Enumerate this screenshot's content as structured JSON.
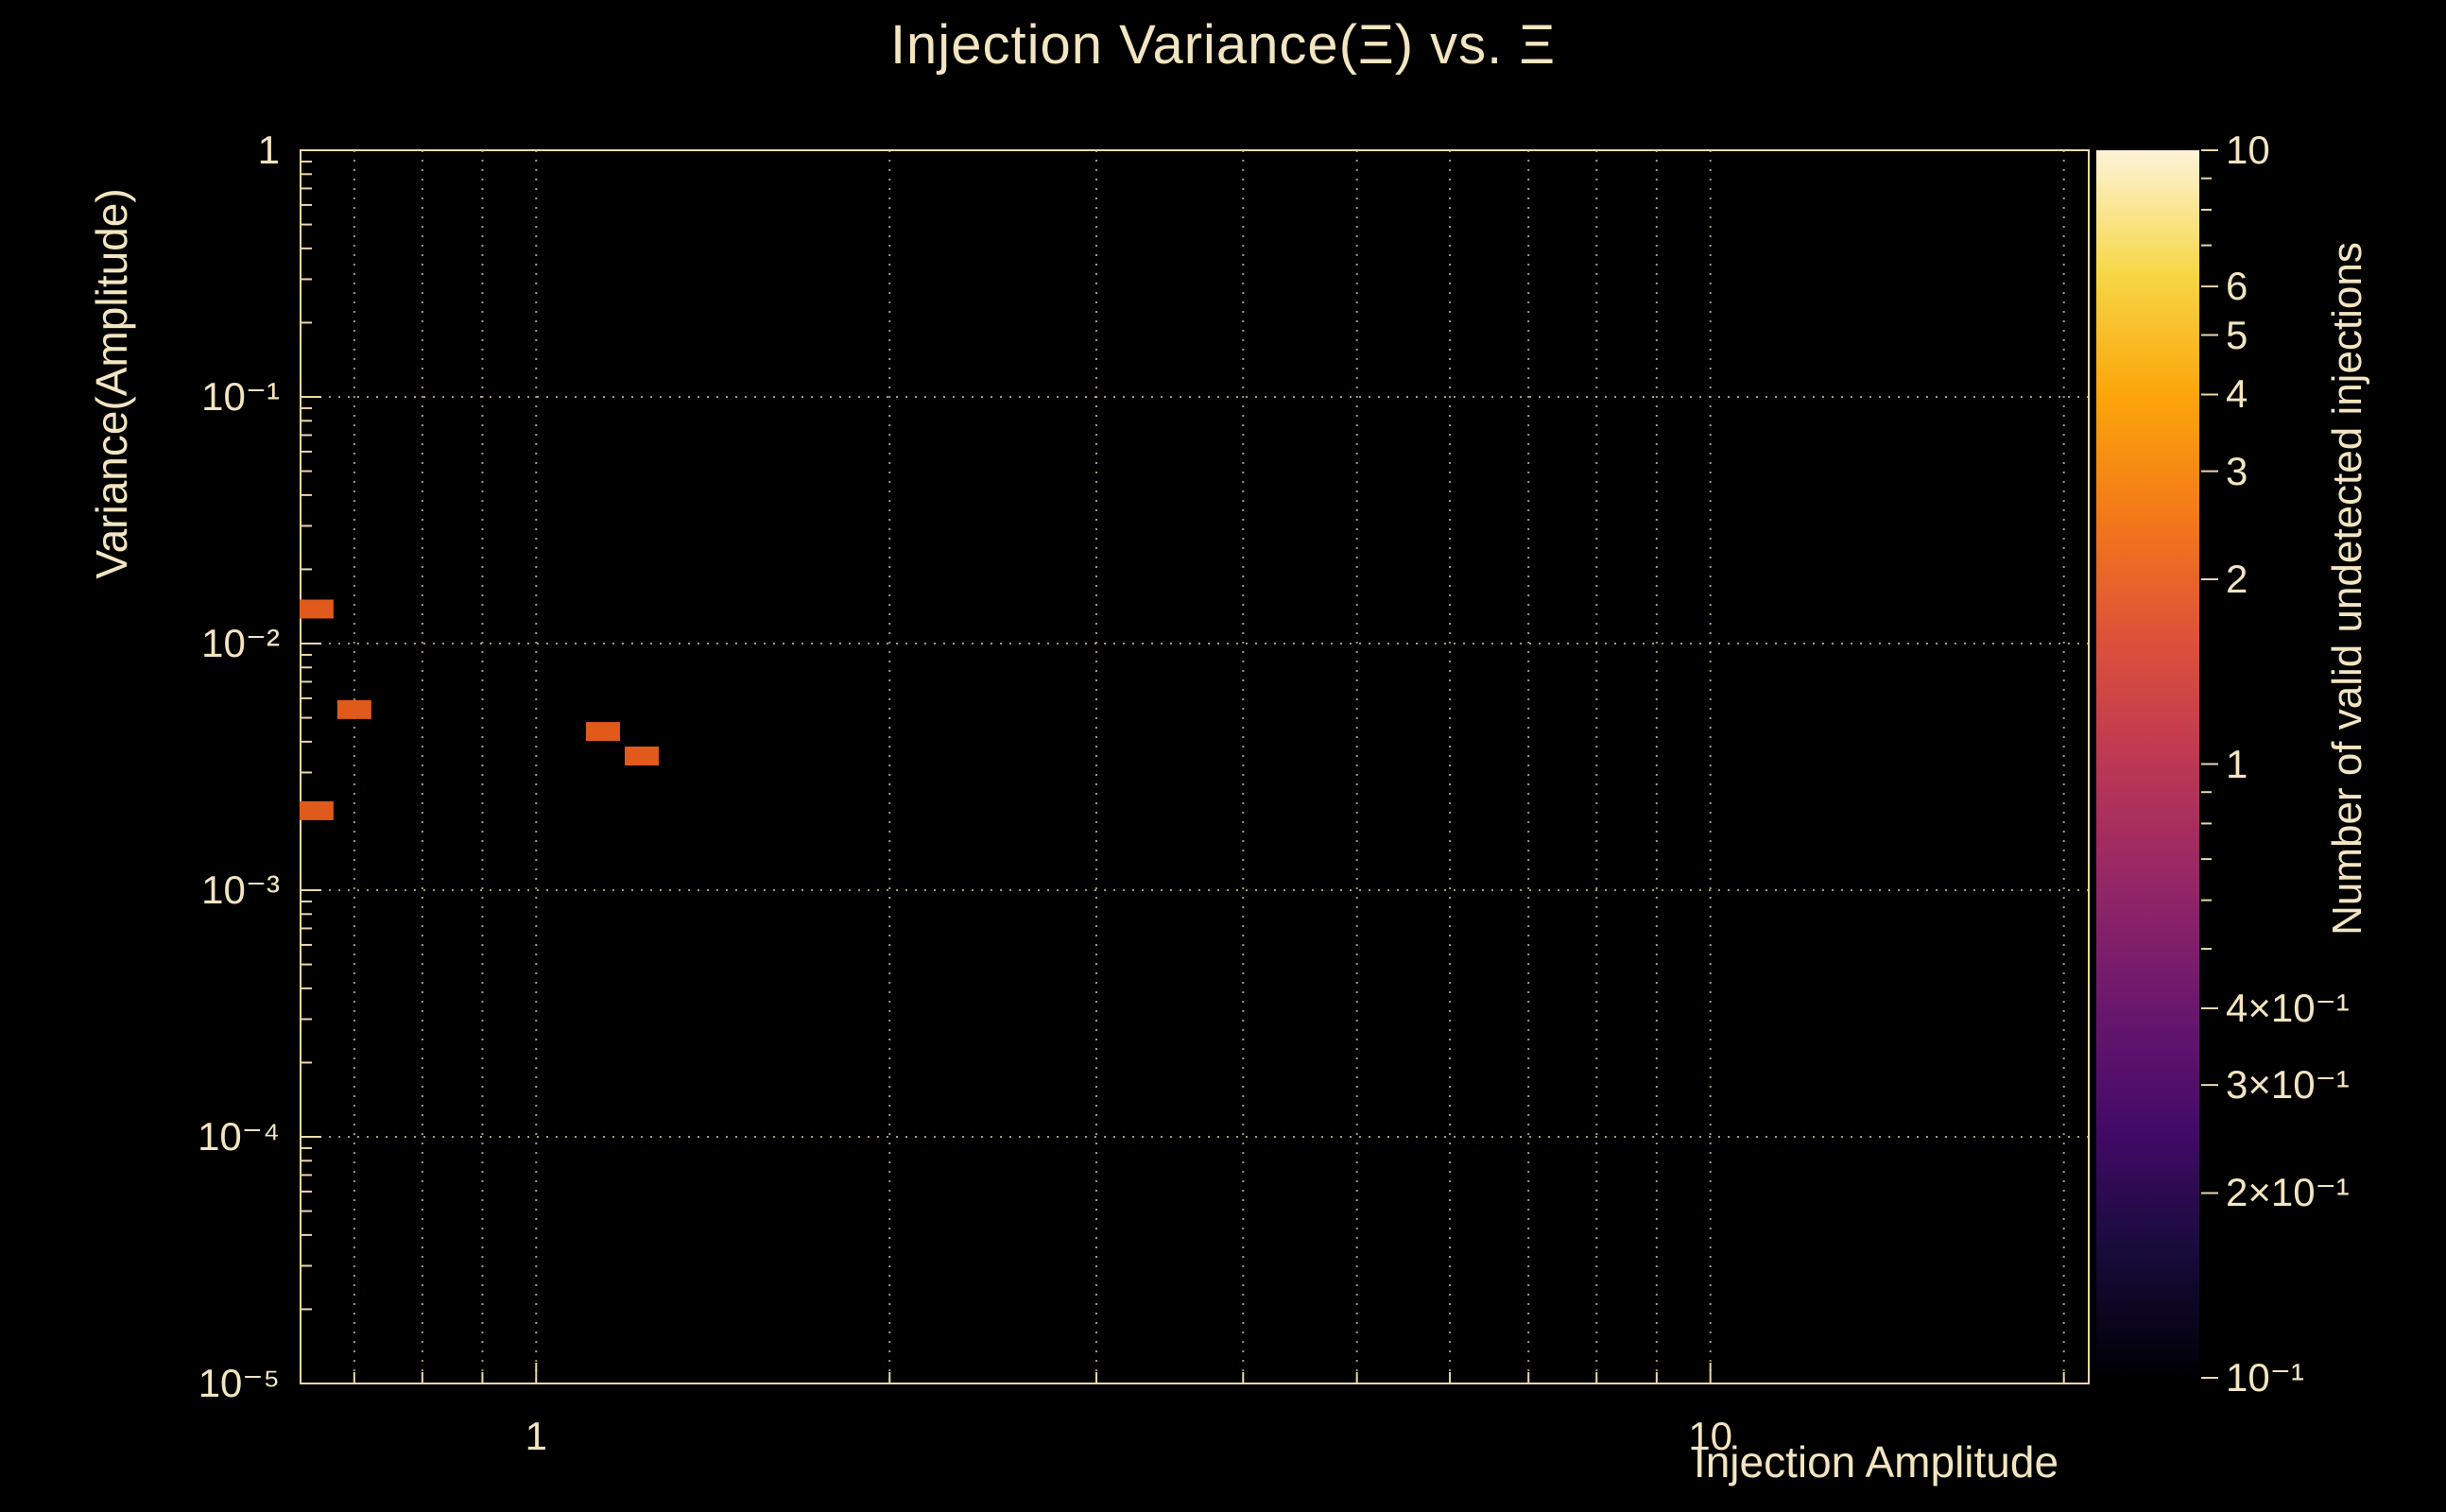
{
  "chart_data": {
    "type": "heatmap",
    "title": "Injection Variance(Ξ) vs. Ξ",
    "xlabel": "Injection Amplitude",
    "ylabel": "Variance(Amplitude)",
    "xscale": "log",
    "yscale": "log",
    "xlim": [
      0.63,
      21
    ],
    "ylim": [
      1e-05,
      1
    ],
    "grid": true,
    "x_major_ticks": [
      {
        "value": 1,
        "label": "1"
      },
      {
        "value": 10,
        "label": "10"
      }
    ],
    "x_grid_values": [
      0.7,
      0.8,
      0.9,
      1,
      2,
      3,
      4,
      5,
      6,
      7,
      8,
      9,
      10,
      20
    ],
    "y_major_ticks": [
      {
        "value": 1,
        "label": "1"
      },
      {
        "value": 0.1,
        "label": "10⁻¹"
      },
      {
        "value": 0.01,
        "label": "10⁻²"
      },
      {
        "value": 0.001,
        "label": "10⁻³"
      },
      {
        "value": 0.0001,
        "label": "10⁻⁴"
      },
      {
        "value": 1e-05,
        "label": "10⁻⁵"
      }
    ],
    "points": [
      {
        "x": 0.65,
        "y": 0.0138,
        "count": 1
      },
      {
        "x": 0.7,
        "y": 0.0054,
        "count": 1
      },
      {
        "x": 1.14,
        "y": 0.0044,
        "count": 1
      },
      {
        "x": 1.23,
        "y": 0.0035,
        "count": 1
      },
      {
        "x": 0.65,
        "y": 0.0021,
        "count": 1
      }
    ],
    "marker_color": "#e05a1b",
    "colorbar": {
      "label": "Number of valid undetected injections",
      "scale": "log",
      "min": 0.1,
      "max": 10,
      "ticks": [
        {
          "value": 10,
          "label": "10"
        },
        {
          "value": 6,
          "label": "6"
        },
        {
          "value": 5,
          "label": "5"
        },
        {
          "value": 4,
          "label": "4"
        },
        {
          "value": 3,
          "label": "3"
        },
        {
          "value": 2,
          "label": "2"
        },
        {
          "value": 1,
          "label": "1"
        },
        {
          "value": 0.4,
          "label": "4×10⁻¹"
        },
        {
          "value": 0.3,
          "label": "3×10⁻¹"
        },
        {
          "value": 0.2,
          "label": "2×10⁻¹"
        },
        {
          "value": 0.1,
          "label": "10⁻¹"
        }
      ],
      "minor_ticks": [
        9,
        8,
        7,
        0.9,
        0.8,
        0.7,
        0.6,
        0.5
      ],
      "gradient": [
        "#000004",
        "#160b39",
        "#420a68",
        "#6a176e",
        "#932667",
        "#bc3754",
        "#dd513a",
        "#f37819",
        "#fca50a",
        "#f6d746",
        "#fdf3d8"
      ]
    },
    "colors": {
      "background": "#000000",
      "text": "#f2e5c0",
      "grid": "#c9b57c",
      "axis": "#ead9a8"
    }
  }
}
